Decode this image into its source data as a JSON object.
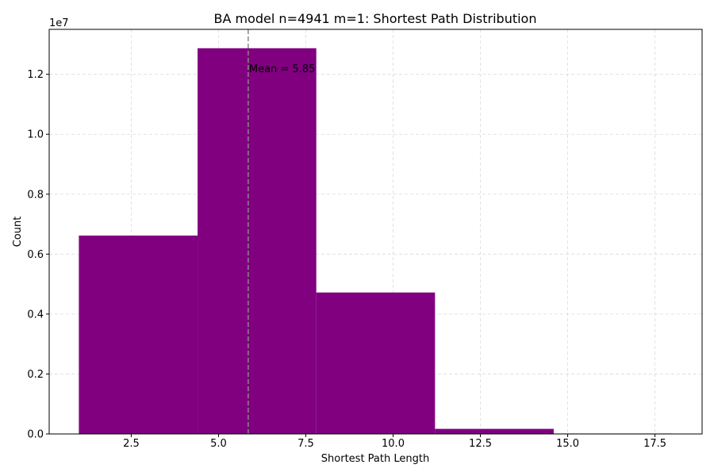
{
  "chart_data": {
    "type": "bar",
    "title": "BA model n=4941 m=1: Shortest Path Distribution",
    "xlabel": "Shortest Path Length",
    "ylabel": "Count",
    "y_multiplier_label": "1e7",
    "bins": [
      {
        "start": 1.0,
        "end": 4.4,
        "value": 6620000
      },
      {
        "start": 4.4,
        "end": 7.8,
        "value": 12870000
      },
      {
        "start": 7.8,
        "end": 11.2,
        "value": 4720000
      },
      {
        "start": 11.2,
        "end": 14.6,
        "value": 170000
      },
      {
        "start": 14.6,
        "end": 18.0,
        "value": 15000
      }
    ],
    "xlim": [
      0.15,
      18.85
    ],
    "ylim": [
      0,
      13500000
    ],
    "xticks": [
      {
        "value": 2.5,
        "label": "2.5"
      },
      {
        "value": 5.0,
        "label": "5.0"
      },
      {
        "value": 7.5,
        "label": "7.5"
      },
      {
        "value": 10.0,
        "label": "10.0"
      },
      {
        "value": 12.5,
        "label": "12.5"
      },
      {
        "value": 15.0,
        "label": "15.0"
      },
      {
        "value": 17.5,
        "label": "17.5"
      }
    ],
    "yticks": [
      {
        "value": 0,
        "label": "0.0"
      },
      {
        "value": 2000000,
        "label": "0.2"
      },
      {
        "value": 4000000,
        "label": "0.4"
      },
      {
        "value": 6000000,
        "label": "0.6"
      },
      {
        "value": 8000000,
        "label": "0.8"
      },
      {
        "value": 10000000,
        "label": "1.0"
      },
      {
        "value": 12000000,
        "label": "1.2"
      }
    ],
    "mean": {
      "value": 5.85,
      "label": "Mean = 5.85",
      "label_y": 12200000
    },
    "grid": true,
    "bar_color": "#800080",
    "mean_line_color": "#888888"
  }
}
